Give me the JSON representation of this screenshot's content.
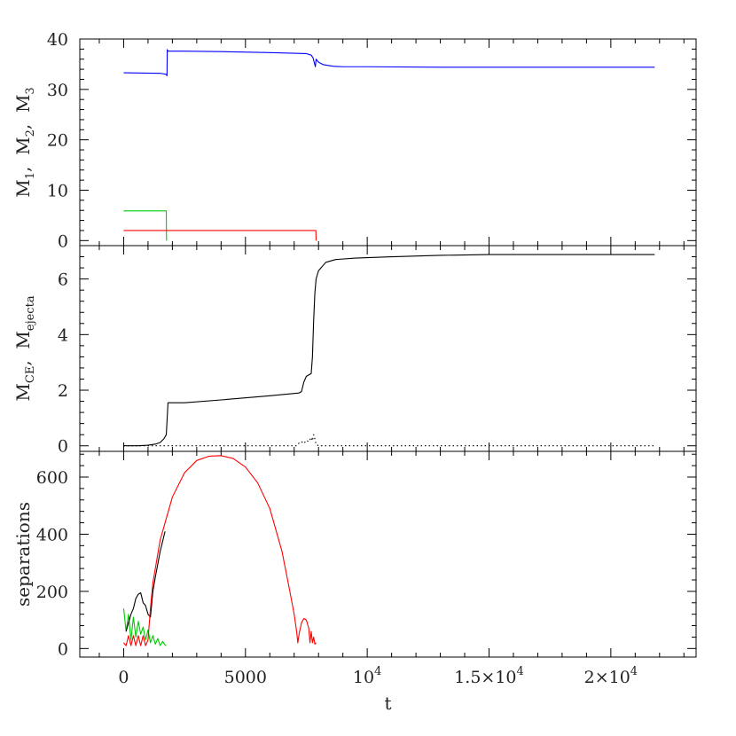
{
  "chart_data": [
    {
      "type": "line",
      "panel": "top",
      "ylabel_parts": [
        [
          "M",
          "1"
        ],
        [
          "M",
          "2"
        ],
        [
          "M",
          "3"
        ]
      ],
      "ylabel_separator": ",",
      "xlabel": "",
      "xlim": [
        -1800,
        23500
      ],
      "ylim": [
        -1,
        40
      ],
      "yticks": [
        0,
        10,
        20,
        30,
        40
      ],
      "grid": false,
      "series": [
        {
          "color": "#0000ff",
          "x": [
            0,
            1500,
            1750,
            1780,
            1790,
            1800,
            1810,
            1830,
            2500,
            4000,
            6000,
            7500,
            7700,
            7780,
            7830,
            7870,
            7900,
            8000,
            8200,
            8600,
            9000,
            10000,
            13000,
            16000,
            19000,
            21800
          ],
          "y": [
            33.3,
            33.2,
            33.0,
            32.7,
            37.9,
            37.6,
            37.7,
            37.6,
            37.6,
            37.5,
            37.3,
            37.1,
            36.8,
            36.2,
            35.2,
            34.5,
            36.0,
            35.4,
            34.9,
            34.6,
            34.5,
            34.5,
            34.4,
            34.4,
            34.4,
            34.4
          ]
        },
        {
          "color": "#00cc00",
          "x": [
            0,
            1750,
            1760
          ],
          "y": [
            5.9,
            5.9,
            0
          ]
        },
        {
          "color": "#ff0000",
          "x": [
            0,
            7800,
            7890,
            7900
          ],
          "y": [
            2.0,
            2.0,
            2.0,
            0
          ]
        }
      ]
    },
    {
      "type": "line",
      "panel": "middle",
      "ylabel_parts": [
        [
          "M",
          "CE"
        ],
        [
          "M",
          "ejecta"
        ]
      ],
      "ylabel_separator": ",",
      "xlabel": "",
      "xlim": [
        -1800,
        23500
      ],
      "ylim": [
        -0.2,
        7.2
      ],
      "yticks": [
        0,
        2,
        4,
        6
      ],
      "grid": false,
      "series": [
        {
          "color": "#000000",
          "style": "solid",
          "x": [
            0,
            600,
            1000,
            1300,
            1500,
            1650,
            1750,
            1800,
            1820,
            1850,
            2500,
            4000,
            6000,
            7200,
            7300,
            7400,
            7500,
            7700,
            7750,
            7800,
            7850,
            7900,
            8000,
            8300,
            8700,
            9500,
            11000,
            13000,
            15000,
            18000,
            21800
          ],
          "y": [
            0,
            0,
            0.02,
            0.06,
            0.12,
            0.25,
            0.4,
            1.2,
            1.55,
            1.55,
            1.55,
            1.65,
            1.8,
            1.9,
            1.95,
            2.3,
            2.5,
            2.6,
            3.2,
            4.5,
            5.5,
            6.0,
            6.3,
            6.6,
            6.7,
            6.75,
            6.8,
            6.85,
            6.88,
            6.88,
            6.88
          ]
        },
        {
          "color": "#000000",
          "style": "dotted",
          "x": [
            0,
            7100,
            7200,
            7300,
            7400,
            7500,
            7600,
            7700,
            7750,
            7800,
            7850,
            7900,
            8000,
            8500,
            21800
          ],
          "y": [
            0,
            0,
            0.1,
            0.15,
            0.08,
            0.2,
            0.15,
            0.3,
            0.18,
            0.4,
            0.25,
            0.05,
            0,
            0,
            0
          ]
        }
      ]
    },
    {
      "type": "line",
      "panel": "bottom",
      "ylabel": "separations",
      "xlabel": "t",
      "xlim": [
        -1800,
        23500
      ],
      "ylim": [
        -30,
        690
      ],
      "yticks": [
        0,
        200,
        400,
        600
      ],
      "xticks": [
        0,
        5000,
        10000,
        15000,
        20000
      ],
      "xtick_labels": [
        [
          "0",
          ""
        ],
        [
          "5000",
          ""
        ],
        [
          "10",
          "4"
        ],
        [
          "1.5×10",
          "4"
        ],
        [
          "2×10",
          "4"
        ]
      ],
      "grid": false,
      "series": [
        {
          "color": "#00cc00",
          "x": [
            0,
            100,
            200,
            300,
            400,
            500,
            600,
            700,
            800,
            900,
            1000,
            1100,
            1200,
            1300,
            1400,
            1500,
            1600,
            1700,
            1750
          ],
          "y": [
            140,
            60,
            120,
            30,
            110,
            40,
            95,
            50,
            75,
            30,
            65,
            20,
            45,
            15,
            35,
            10,
            25,
            12,
            10
          ]
        },
        {
          "color": "#000000",
          "x": [
            100,
            200,
            300,
            400,
            500,
            600,
            700,
            800,
            900,
            1000,
            1100,
            1200,
            1300,
            1500,
            1700
          ],
          "y": [
            60,
            90,
            120,
            140,
            175,
            190,
            195,
            160,
            150,
            120,
            110,
            200,
            250,
            340,
            410
          ]
        },
        {
          "color": "#ff0000",
          "x": [
            0,
            100,
            200,
            300,
            400,
            500,
            600,
            700,
            800,
            900,
            1000,
            1100,
            1200,
            1500,
            2000,
            2500,
            3000,
            3500,
            4000,
            4500,
            5000,
            5500,
            6000,
            6500,
            6800,
            7000,
            7100,
            7150,
            7200,
            7300,
            7400,
            7500,
            7600,
            7650,
            7700,
            7750,
            7800,
            7850,
            7900
          ],
          "y": [
            20,
            10,
            45,
            10,
            45,
            10,
            45,
            10,
            45,
            10,
            30,
            140,
            230,
            380,
            530,
            615,
            658,
            673,
            675,
            665,
            635,
            580,
            490,
            340,
            210,
            120,
            60,
            20,
            50,
            90,
            105,
            100,
            70,
            20,
            60,
            20,
            40,
            15,
            20
          ]
        }
      ]
    }
  ]
}
